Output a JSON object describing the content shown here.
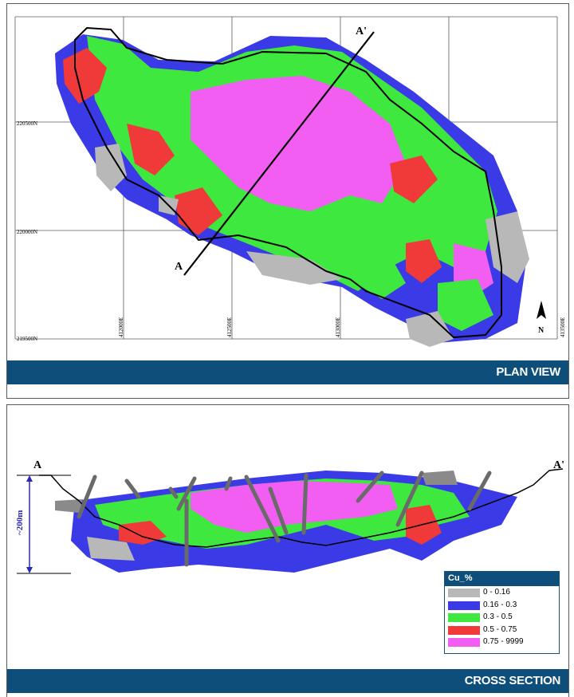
{
  "plan_view": {
    "section_start_label": "A",
    "section_end_label": "A'",
    "northing_labels": [
      "220500N",
      "220000N",
      "219500N"
    ],
    "easting_labels": [
      "412000E",
      "412500E",
      "413000E",
      "413500E"
    ],
    "north_arrow_label": "N",
    "title": "PLAN VIEW"
  },
  "cross_section": {
    "section_start_label": "A",
    "section_end_label": "A'",
    "depth_scale_label": "~200m",
    "title": "CROSS SECTION"
  },
  "legend": {
    "title": "Cu_%",
    "items": [
      {
        "label": "0 - 0.16",
        "color": "#b8b8b8"
      },
      {
        "label": "0.16 - 0.3",
        "color": "#3a3ae6"
      },
      {
        "label": "0.3 - 0.5",
        "color": "#3ee83e"
      },
      {
        "label": "0.5 - 0.75",
        "color": "#f03a3a"
      },
      {
        "label": "0.75 - 9999",
        "color": "#f25ef2"
      }
    ]
  },
  "colors": {
    "banner": "#0d4f7a",
    "scale_bar": "#2a2ab0"
  }
}
